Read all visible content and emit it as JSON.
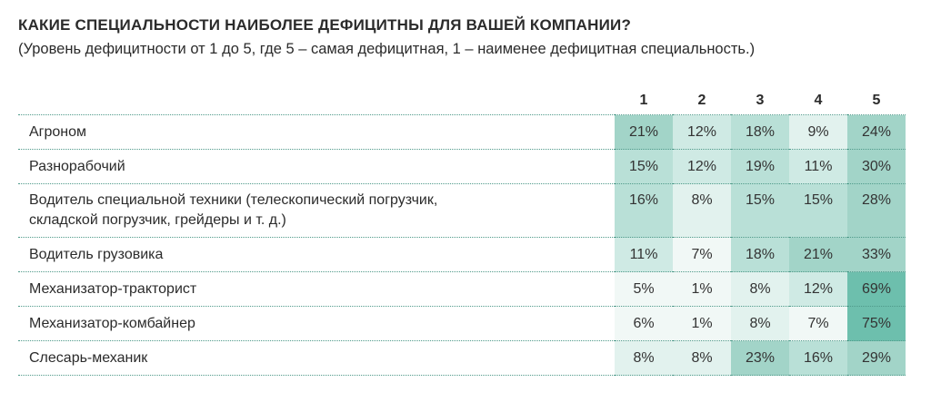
{
  "title": "КАКИЕ СПЕЦИАЛЬНОСТИ НАИБОЛЕЕ ДЕФИЦИТНЫ ДЛЯ ВАШЕЙ КОМПАНИИ?",
  "subtitle": "(Уровень дефицитности от 1 до 5, где 5 – самая дефицитная, 1 – наименее дефицитная специальность.)",
  "columns": [
    "1",
    "2",
    "3",
    "4",
    "5"
  ],
  "rows": [
    {
      "name_lines": [
        "Агроном"
      ],
      "values": [
        "21%",
        "12%",
        "18%",
        "9%",
        "24%"
      ],
      "numbers": [
        21,
        12,
        18,
        9,
        24
      ]
    },
    {
      "name_lines": [
        "Разнорабочий"
      ],
      "values": [
        "15%",
        "12%",
        "19%",
        "11%",
        "30%"
      ],
      "numbers": [
        15,
        12,
        19,
        11,
        30
      ]
    },
    {
      "name_lines": [
        "Водитель специальной техники (телескопический погрузчик,",
        "складской погрузчик, грейдеры и т. д.)"
      ],
      "values": [
        "16%",
        "8%",
        "15%",
        "15%",
        "28%"
      ],
      "numbers": [
        16,
        8,
        15,
        15,
        28
      ]
    },
    {
      "name_lines": [
        "Водитель грузовика"
      ],
      "values": [
        "11%",
        "7%",
        "18%",
        "21%",
        "33%"
      ],
      "numbers": [
        11,
        7,
        18,
        21,
        33
      ]
    },
    {
      "name_lines": [
        "Механизатор-тракторист"
      ],
      "values": [
        "5%",
        "1%",
        "8%",
        "12%",
        "69%"
      ],
      "numbers": [
        5,
        1,
        8,
        12,
        69
      ]
    },
    {
      "name_lines": [
        "Механизатор-комбайнер"
      ],
      "values": [
        "6%",
        "1%",
        "8%",
        "7%",
        "75%"
      ],
      "numbers": [
        6,
        1,
        8,
        7,
        75
      ]
    },
    {
      "name_lines": [
        "Слесарь-механик"
      ],
      "values": [
        "8%",
        "8%",
        "23%",
        "16%",
        "29%"
      ],
      "numbers": [
        8,
        8,
        23,
        16,
        29
      ]
    }
  ],
  "colors": {
    "heat_scale": [
      "#f1f8f6",
      "#e2f2ee",
      "#cfeae4",
      "#b9e0d7",
      "#a2d4c8",
      "#6dbfad"
    ],
    "grid_line": "#4f9a8a"
  }
}
